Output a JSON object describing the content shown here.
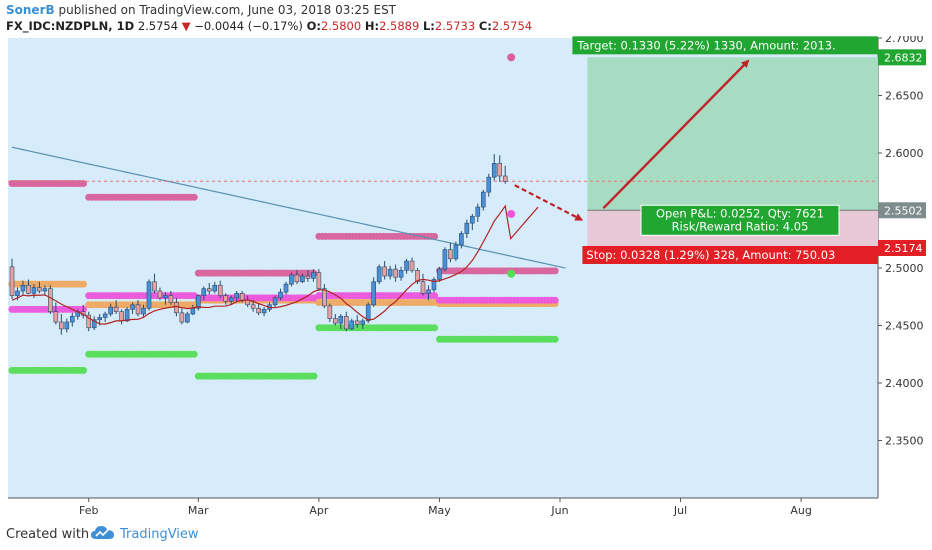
{
  "header": {
    "author": "SonerB",
    "published": "published on TradingView.com, June 03, 2018 03:25 EST",
    "symbol": "FX_IDC:NZDPLN, 1D",
    "last": "2.5754",
    "change": "−0.0044 (−0.17%)",
    "o_label": "O:",
    "o": "2.5800",
    "h_label": "H:",
    "h": "2.5889",
    "l_label": "L:",
    "l": "2.5733",
    "c_label": "C:",
    "c": "2.5754"
  },
  "footer": {
    "created_with": "Created with",
    "brand": "TradingView"
  },
  "colors": {
    "background": "#d7ecfb",
    "up": "#4a90d9",
    "down": "#e8a0a0",
    "target_zone": "#a7dcc3",
    "stop_zone": "#e6c8d6",
    "target_label": "#22a632",
    "stop_label": "#e31e24",
    "arrow": "#c0242b"
  },
  "chart_data": {
    "type": "candlestick",
    "y_range": [
      2.3,
      2.7
    ],
    "y_ticks": [
      "2.7000",
      "2.6500",
      "2.6000",
      "2.5500",
      "2.5000",
      "2.4500",
      "2.4000",
      "2.3500"
    ],
    "x_ticks": [
      "Feb",
      "Mar",
      "Apr",
      "May",
      "Jun",
      "Jul",
      "Aug"
    ],
    "price_badges": [
      {
        "text": "2.6832",
        "value": 2.6832,
        "color": "#22a632"
      },
      {
        "text": "2.5502",
        "value": 2.5502,
        "color": "#7f8c8d"
      },
      {
        "text": "2.5174",
        "value": 2.5174,
        "color": "#e31e24"
      }
    ],
    "position": {
      "target_text": "Target: 0.1330 (5.22%) 1330, Amount: 2013.",
      "stop_text": "Stop: 0.0328 (1.29%) 328, Amount: 750.03",
      "pnl_text": "Open P&L: 0.0252, Qty: 7621",
      "rr_text": "Risk/Reward Ratio: 4.05",
      "entry": 2.5502,
      "target": 2.6832,
      "stop": 2.5174
    },
    "last_price_line": 2.5754,
    "candles": [
      [
        2.501,
        2.508,
        2.473,
        2.476
      ],
      [
        2.476,
        2.483,
        2.472,
        2.48
      ],
      [
        2.48,
        2.489,
        2.476,
        2.485
      ],
      [
        2.485,
        2.49,
        2.477,
        2.478
      ],
      [
        2.478,
        2.486,
        2.474,
        2.483
      ],
      [
        2.483,
        2.488,
        2.478,
        2.48
      ],
      [
        2.48,
        2.485,
        2.476,
        2.482
      ],
      [
        2.482,
        2.485,
        2.46,
        2.462
      ],
      [
        2.462,
        2.47,
        2.451,
        2.453
      ],
      [
        2.453,
        2.46,
        2.442,
        2.447
      ],
      [
        2.447,
        2.456,
        2.444,
        2.453
      ],
      [
        2.453,
        2.461,
        2.449,
        2.458
      ],
      [
        2.458,
        2.464,
        2.455,
        2.462
      ],
      [
        2.462,
        2.468,
        2.456,
        2.459
      ],
      [
        2.459,
        2.462,
        2.445,
        2.448
      ],
      [
        2.448,
        2.458,
        2.446,
        2.455
      ],
      [
        2.455,
        2.46,
        2.45,
        2.457
      ],
      [
        2.457,
        2.462,
        2.453,
        2.46
      ],
      [
        2.46,
        2.469,
        2.458,
        2.466
      ],
      [
        2.466,
        2.472,
        2.46,
        2.462
      ],
      [
        2.462,
        2.464,
        2.451,
        2.454
      ],
      [
        2.454,
        2.466,
        2.453,
        2.464
      ],
      [
        2.464,
        2.47,
        2.46,
        2.468
      ],
      [
        2.468,
        2.472,
        2.458,
        2.46
      ],
      [
        2.46,
        2.468,
        2.457,
        2.465
      ],
      [
        2.465,
        2.49,
        2.463,
        2.488
      ],
      [
        2.488,
        2.495,
        2.478,
        2.48
      ],
      [
        2.48,
        2.483,
        2.472,
        2.474
      ],
      [
        2.474,
        2.479,
        2.468,
        2.476
      ],
      [
        2.476,
        2.48,
        2.468,
        2.47
      ],
      [
        2.47,
        2.474,
        2.458,
        2.461
      ],
      [
        2.461,
        2.465,
        2.451,
        2.453
      ],
      [
        2.453,
        2.462,
        2.452,
        2.46
      ],
      [
        2.46,
        2.468,
        2.459,
        2.465
      ],
      [
        2.465,
        2.477,
        2.463,
        2.476
      ],
      [
        2.476,
        2.484,
        2.472,
        2.482
      ],
      [
        2.482,
        2.487,
        2.477,
        2.48
      ],
      [
        2.48,
        2.488,
        2.478,
        2.485
      ],
      [
        2.485,
        2.489,
        2.474,
        2.476
      ],
      [
        2.476,
        2.478,
        2.468,
        2.471
      ],
      [
        2.471,
        2.476,
        2.468,
        2.474
      ],
      [
        2.474,
        2.48,
        2.471,
        2.478
      ],
      [
        2.478,
        2.48,
        2.47,
        2.472
      ],
      [
        2.472,
        2.476,
        2.466,
        2.468
      ],
      [
        2.468,
        2.472,
        2.462,
        2.465
      ],
      [
        2.465,
        2.469,
        2.459,
        2.461
      ],
      [
        2.461,
        2.466,
        2.458,
        2.464
      ],
      [
        2.464,
        2.47,
        2.462,
        2.468
      ],
      [
        2.468,
        2.476,
        2.466,
        2.474
      ],
      [
        2.474,
        2.482,
        2.472,
        2.479
      ],
      [
        2.479,
        2.488,
        2.477,
        2.486
      ],
      [
        2.486,
        2.496,
        2.484,
        2.494
      ],
      [
        2.494,
        2.498,
        2.486,
        2.488
      ],
      [
        2.488,
        2.495,
        2.487,
        2.493
      ],
      [
        2.493,
        2.498,
        2.488,
        2.491
      ],
      [
        2.491,
        2.499,
        2.488,
        2.496
      ],
      [
        2.496,
        2.499,
        2.48,
        2.482
      ],
      [
        2.482,
        2.486,
        2.465,
        2.467
      ],
      [
        2.467,
        2.469,
        2.453,
        2.456
      ],
      [
        2.456,
        2.46,
        2.45,
        2.452
      ],
      [
        2.452,
        2.46,
        2.447,
        2.458
      ],
      [
        2.458,
        2.462,
        2.445,
        2.447
      ],
      [
        2.447,
        2.456,
        2.446,
        2.454
      ],
      [
        2.454,
        2.459,
        2.448,
        2.451
      ],
      [
        2.451,
        2.456,
        2.447,
        2.454
      ],
      [
        2.454,
        2.47,
        2.452,
        2.468
      ],
      [
        2.468,
        2.492,
        2.466,
        2.488
      ],
      [
        2.488,
        2.503,
        2.486,
        2.501
      ],
      [
        2.501,
        2.506,
        2.49,
        2.493
      ],
      [
        2.493,
        2.502,
        2.49,
        2.499
      ],
      [
        2.499,
        2.503,
        2.488,
        2.492
      ],
      [
        2.492,
        2.501,
        2.489,
        2.498
      ],
      [
        2.498,
        2.508,
        2.495,
        2.506
      ],
      [
        2.506,
        2.509,
        2.496,
        2.498
      ],
      [
        2.498,
        2.5,
        2.486,
        2.488
      ],
      [
        2.488,
        2.495,
        2.476,
        2.478
      ],
      [
        2.478,
        2.485,
        2.472,
        2.481
      ],
      [
        2.481,
        2.492,
        2.479,
        2.49
      ],
      [
        2.49,
        2.501,
        2.488,
        2.499
      ],
      [
        2.499,
        2.518,
        2.497,
        2.516
      ],
      [
        2.516,
        2.522,
        2.505,
        2.508
      ],
      [
        2.508,
        2.523,
        2.506,
        2.52
      ],
      [
        2.52,
        2.532,
        2.517,
        2.53
      ],
      [
        2.53,
        2.542,
        2.526,
        2.539
      ],
      [
        2.539,
        2.547,
        2.533,
        2.545
      ],
      [
        2.545,
        2.556,
        2.54,
        2.553
      ],
      [
        2.553,
        2.568,
        2.55,
        2.566
      ],
      [
        2.566,
        2.582,
        2.562,
        2.579
      ],
      [
        2.579,
        2.599,
        2.576,
        2.591
      ],
      [
        2.591,
        2.598,
        2.575,
        2.58
      ],
      [
        2.58,
        2.5889,
        2.5733,
        2.5754
      ]
    ]
  }
}
